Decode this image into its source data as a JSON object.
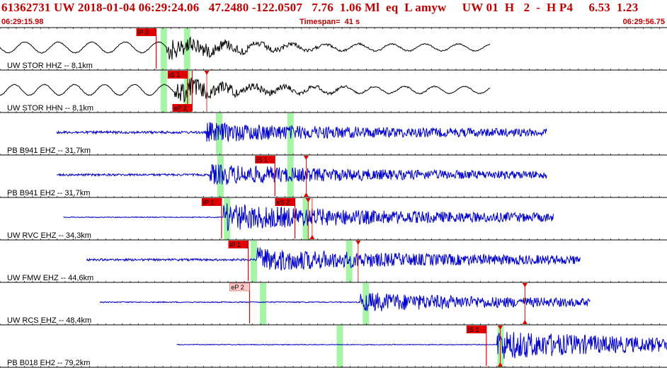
{
  "header": {
    "event_line": "61362731 UW 2018-01-04 06:29:24.06   47.2480 -122.0507   7.76  1.06 Ml  eq  L amyw     UW 01  H   2  -  H P4     6.53  1.23",
    "start_time": "06:29:15.98",
    "timespan": "Timespan=  41 s",
    "end_time": "06:29:56.75"
  },
  "colors": {
    "header_text": "#c00000",
    "trace_black": "#000000",
    "trace_blue": "#0000cc",
    "pick_box": "#e00000",
    "pick_box_emergent": "#ffc8c8",
    "window_band": "#a6f5a6",
    "grid": "#000000"
  },
  "traces": [
    {
      "label": "UW STOR HHZ -- 8,1km",
      "color": "black",
      "start": 0.0,
      "end": 0.735,
      "amp": 0.55,
      "period": 0.05,
      "onset": 0.25,
      "noise": 0.02,
      "bands": [
        0.245,
        0.28
      ],
      "picks": [
        {
          "text": "iP 0",
          "x": 0.232,
          "style": "red",
          "pos": "top"
        }
      ],
      "markers": []
    },
    {
      "label": "UW STOR HHN -- 8,1km",
      "color": "black",
      "start": 0.0,
      "end": 0.735,
      "amp": 0.5,
      "period": 0.045,
      "onset": 0.262,
      "noise": 0.02,
      "bands": [
        0.245,
        0.28
      ],
      "picks": [
        {
          "text": "iS 1",
          "x": 0.279,
          "style": "red",
          "pos": "top"
        },
        {
          "text": "eP 2",
          "x": 0.286,
          "style": "red",
          "pos": "bottom"
        }
      ],
      "markers": [
        {
          "x": 0.31,
          "pos": "top"
        }
      ]
    },
    {
      "label": "PB B941 EHZ -- 31,7km",
      "color": "blue",
      "start": 0.085,
      "end": 0.82,
      "amp": 0.28,
      "period": 0.004,
      "onset": 0.31,
      "noise": 0.06,
      "bands": [
        0.328,
        0.435
      ],
      "picks": [],
      "markers": []
    },
    {
      "label": "PB B941 EH2 -- 31,7km",
      "color": "blue",
      "start": 0.085,
      "end": 0.82,
      "amp": 0.3,
      "period": 0.004,
      "onset": 0.315,
      "noise": 0.05,
      "bands": [
        0.33,
        0.435
      ],
      "picks": [
        {
          "text": "iS 1",
          "x": 0.41,
          "style": "red",
          "pos": "top"
        }
      ],
      "markers": [
        {
          "x": 0.459,
          "pos": "top"
        },
        {
          "x": 0.459,
          "pos": "bottom"
        }
      ]
    },
    {
      "label": "UW RVC EHZ -- 34,3km",
      "color": "blue",
      "start": 0.095,
      "end": 0.83,
      "amp": 0.42,
      "period": 0.004,
      "onset": 0.335,
      "noise": 0.02,
      "bands": [
        0.34,
        0.458
      ],
      "picks": [
        {
          "text": "iP 1",
          "x": 0.33,
          "style": "red",
          "pos": "top"
        },
        {
          "text": "eS 2",
          "x": 0.44,
          "style": "red",
          "pos": "top"
        }
      ],
      "markers": [
        {
          "x": 0.462,
          "pos": "top"
        },
        {
          "x": 0.468,
          "pos": "bottom"
        }
      ]
    },
    {
      "label": "UW FMW EHZ -- 44,6km",
      "color": "blue",
      "start": 0.13,
      "end": 0.87,
      "amp": 0.35,
      "period": 0.004,
      "onset": 0.385,
      "noise": 0.05,
      "bands": [
        0.38,
        0.523
      ],
      "picks": [
        {
          "text": "iP 1",
          "x": 0.37,
          "style": "red",
          "pos": "top"
        }
      ],
      "markers": [
        {
          "x": 0.537,
          "pos": "top"
        }
      ]
    },
    {
      "label": "UW RCS EHZ -- 48,4km",
      "color": "blue",
      "start": 0.15,
      "end": 0.885,
      "amp": 0.3,
      "period": 0.004,
      "onset": 0.54,
      "noise": 0.025,
      "bands": [
        0.394,
        0.548
      ],
      "picks": [
        {
          "text": "eP 2",
          "x": 0.372,
          "style": "pink",
          "pos": "top"
        }
      ],
      "markers": [
        {
          "x": 0.787,
          "pos": "top"
        },
        {
          "x": 0.787,
          "pos": "bottom"
        }
      ]
    },
    {
      "label": "PB B018 EH2 -- 79,2km",
      "color": "blue",
      "start": 0.265,
      "end": 1.0,
      "amp": 0.45,
      "period": 0.004,
      "onset": 0.745,
      "noise": 0.02,
      "bands": [
        0.509,
        0.75
      ],
      "picks": [
        {
          "text": "iS 1",
          "x": 0.727,
          "style": "red",
          "pos": "top"
        }
      ],
      "markers": [
        {
          "x": 0.75,
          "pos": "top"
        },
        {
          "x": 0.75,
          "pos": "bottom"
        }
      ]
    }
  ]
}
